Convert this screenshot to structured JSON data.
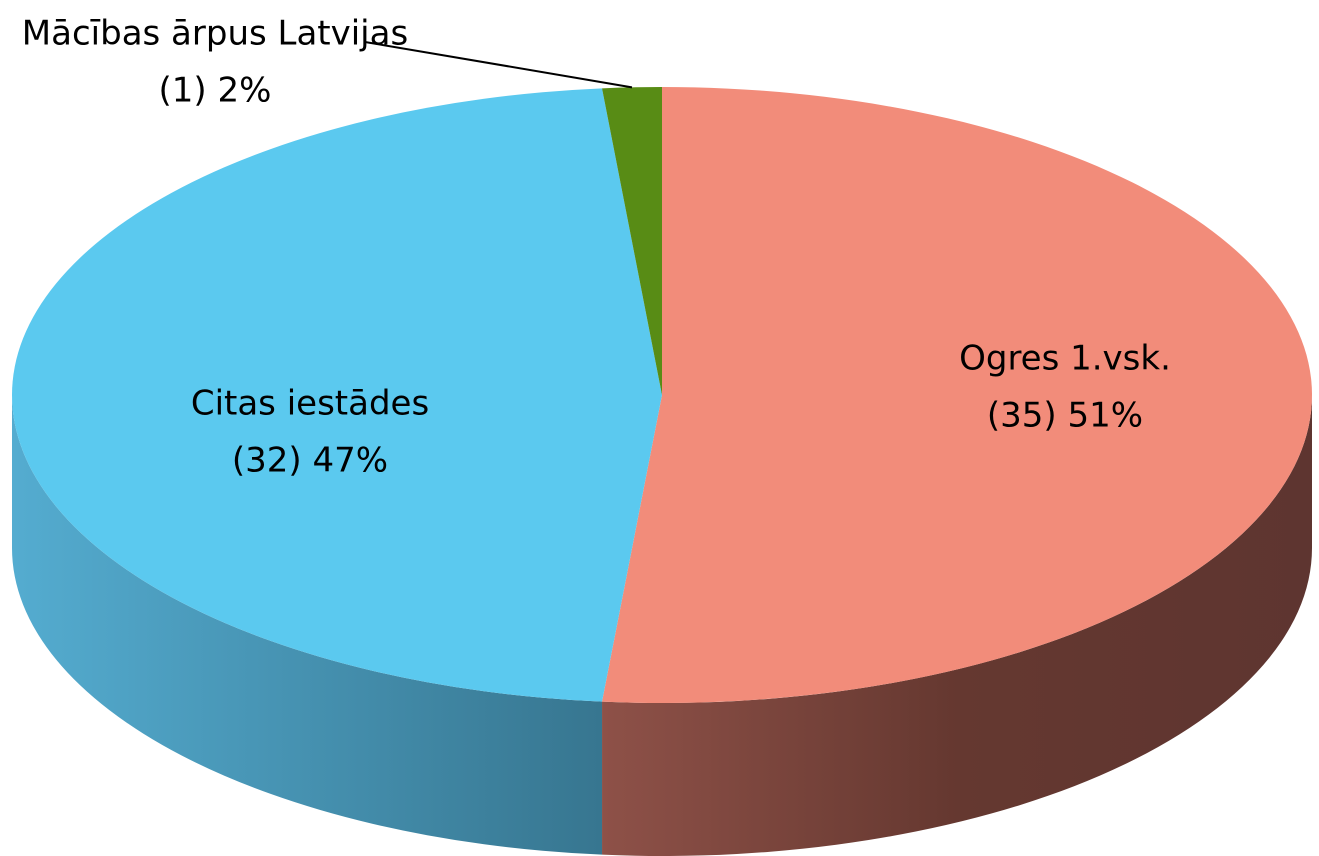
{
  "chart_data": {
    "type": "pie3d",
    "categories": [
      "Ogres 1.vsk.",
      "Citas iestādes",
      "Mācības ārpus Latvijas"
    ],
    "values": [
      35,
      32,
      1
    ],
    "value_labels": [
      "(35) 51%",
      "(32) 47%",
      "(1) 2%"
    ],
    "colors": [
      "#f28c7a",
      "#5bc9ef",
      "#588c15"
    ]
  }
}
